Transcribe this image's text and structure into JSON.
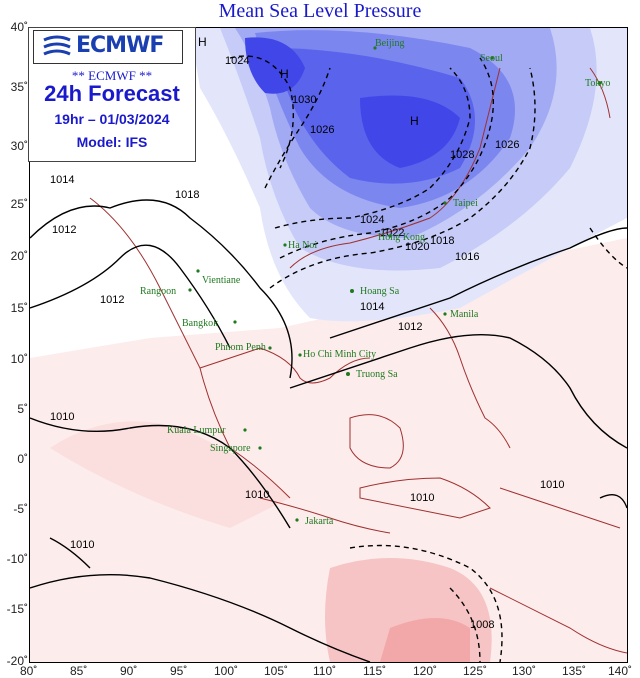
{
  "title": "Mean Sea Level Pressure",
  "infobox": {
    "logo_text": "ECMWF",
    "subtitle": "** ECMWF **",
    "forecast": "24h Forecast",
    "valid_time": "19hr – 01/03/2024",
    "model": "Model: IFS"
  },
  "axes": {
    "lat_ticks": [
      "40˚",
      "35˚",
      "30˚",
      "25˚",
      "20˚",
      "15˚",
      "10˚",
      "5˚",
      "0˚",
      "-5˚",
      "-10˚",
      "-15˚",
      "-20˚"
    ],
    "lon_ticks": [
      "80˚",
      "85˚",
      "90˚",
      "95˚",
      "100˚",
      "105˚",
      "110˚",
      "115˚",
      "120˚",
      "125˚",
      "130˚",
      "135˚",
      "140˚"
    ]
  },
  "cities": [
    "Beijing",
    "Seoul",
    "Tokyo",
    "Taipei",
    "Hong Kong",
    "Ha Noi",
    "Vientiane",
    "Rangoon",
    "Bangkok",
    "Phnom Penh",
    "Ho Chi Minh City",
    "Hoang Sa",
    "Truong Sa",
    "Manila",
    "Kuala Lumpur",
    "Singapore",
    "Jakarta"
  ],
  "isobar_labels": [
    "1030",
    "1028",
    "1026",
    "1024",
    "1022",
    "1020",
    "1018",
    "1016",
    "1014",
    "1012",
    "1010",
    "1008"
  ],
  "pressure_centres": [
    "H",
    "H",
    "H"
  ],
  "colors": {
    "high": "#3a3cf0",
    "low": "#f2a0a0",
    "neutral": "#ffffff",
    "coast": "#a03030",
    "city": "#1f7a1f",
    "title": "#1a1acc"
  }
}
